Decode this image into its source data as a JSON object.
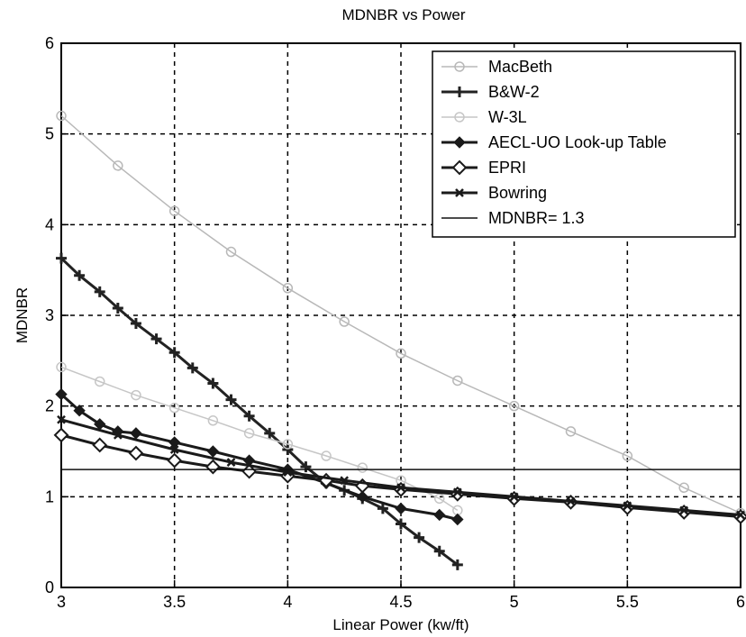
{
  "chart_data": {
    "type": "line",
    "title": "MDNBR vs Power",
    "xlabel": "Linear Power (kw/ft)",
    "ylabel": "MDNBR",
    "xlim": [
      3,
      6
    ],
    "ylim": [
      0,
      6
    ],
    "xticks": [
      3,
      3.5,
      4,
      4.5,
      5,
      5.5,
      6
    ],
    "yticks": [
      0,
      1,
      2,
      3,
      4,
      5,
      6
    ],
    "xtick_labels": [
      "3",
      "3.5",
      "4",
      "4.5",
      "5",
      "5.5",
      "6"
    ],
    "ytick_labels": [
      "0",
      "1",
      "2",
      "3",
      "4",
      "5",
      "6"
    ],
    "grid": true,
    "grid_style": "dashed",
    "legend_position": "top-right",
    "series": [
      {
        "name": "MacBeth",
        "color": "#b8b8b8",
        "marker": "hexagon",
        "x": [
          3.0,
          3.25,
          3.5,
          3.75,
          4.0,
          4.25,
          4.5,
          4.75,
          5.0,
          5.25,
          5.5,
          5.75,
          6.0
        ],
        "y": [
          5.2,
          4.65,
          4.15,
          3.7,
          3.3,
          2.93,
          2.58,
          2.28,
          2.0,
          1.72,
          1.45,
          1.1,
          0.82
        ]
      },
      {
        "name": "B&W-2",
        "color": "#222222",
        "marker": "plus",
        "x": [
          3.0,
          3.08,
          3.17,
          3.25,
          3.33,
          3.42,
          3.5,
          3.58,
          3.67,
          3.75,
          3.83,
          3.92,
          4.0,
          4.08,
          4.17,
          4.25,
          4.33,
          4.42,
          4.5,
          4.58,
          4.67,
          4.75
        ],
        "y": [
          3.63,
          3.44,
          3.26,
          3.08,
          2.91,
          2.74,
          2.59,
          2.42,
          2.25,
          2.07,
          1.89,
          1.7,
          1.52,
          1.33,
          1.15,
          1.07,
          0.98,
          0.87,
          0.7,
          0.55,
          0.4,
          0.25
        ]
      },
      {
        "name": "W-3L",
        "color": "#c6c6c6",
        "marker": "hexagon",
        "x": [
          3.0,
          3.17,
          3.33,
          3.5,
          3.67,
          3.83,
          4.0,
          4.17,
          4.33,
          4.5,
          4.67,
          4.75
        ],
        "y": [
          2.43,
          2.27,
          2.12,
          1.98,
          1.84,
          1.7,
          1.58,
          1.45,
          1.32,
          1.18,
          0.98,
          0.85
        ]
      },
      {
        "name": "AECL-UO Look-up Table",
        "color": "#1a1a1a",
        "marker": "diamond-filled",
        "x": [
          3.0,
          3.08,
          3.17,
          3.25,
          3.33,
          3.5,
          3.67,
          3.83,
          4.0,
          4.17,
          4.33,
          4.5,
          4.67,
          4.75
        ],
        "y": [
          2.13,
          1.95,
          1.8,
          1.72,
          1.7,
          1.6,
          1.5,
          1.4,
          1.3,
          1.15,
          1.0,
          0.87,
          0.8,
          0.75
        ]
      },
      {
        "name": "EPRI",
        "color": "#1a1a1a",
        "marker": "diamond-open",
        "x": [
          3.0,
          3.17,
          3.33,
          3.5,
          3.67,
          3.83,
          4.0,
          4.17,
          4.33,
          4.5,
          4.75,
          5.0,
          5.25,
          5.5,
          5.75,
          6.0
        ],
        "y": [
          1.68,
          1.57,
          1.48,
          1.4,
          1.33,
          1.28,
          1.23,
          1.18,
          1.12,
          1.08,
          1.03,
          0.98,
          0.94,
          0.88,
          0.83,
          0.78
        ]
      },
      {
        "name": "Bowring",
        "color": "#1a1a1a",
        "marker": "x",
        "x": [
          3.0,
          3.25,
          3.5,
          3.75,
          4.0,
          4.25,
          4.5,
          4.75,
          5.0,
          5.25,
          5.5,
          5.75,
          6.0
        ],
        "y": [
          1.85,
          1.68,
          1.52,
          1.38,
          1.27,
          1.18,
          1.1,
          1.05,
          1.0,
          0.95,
          0.9,
          0.85,
          0.8
        ]
      },
      {
        "name": "MDNBR= 1.3",
        "color": "#111111",
        "marker": "none",
        "x": [
          3.0,
          6.0
        ],
        "y": [
          1.3,
          1.3
        ]
      }
    ]
  }
}
